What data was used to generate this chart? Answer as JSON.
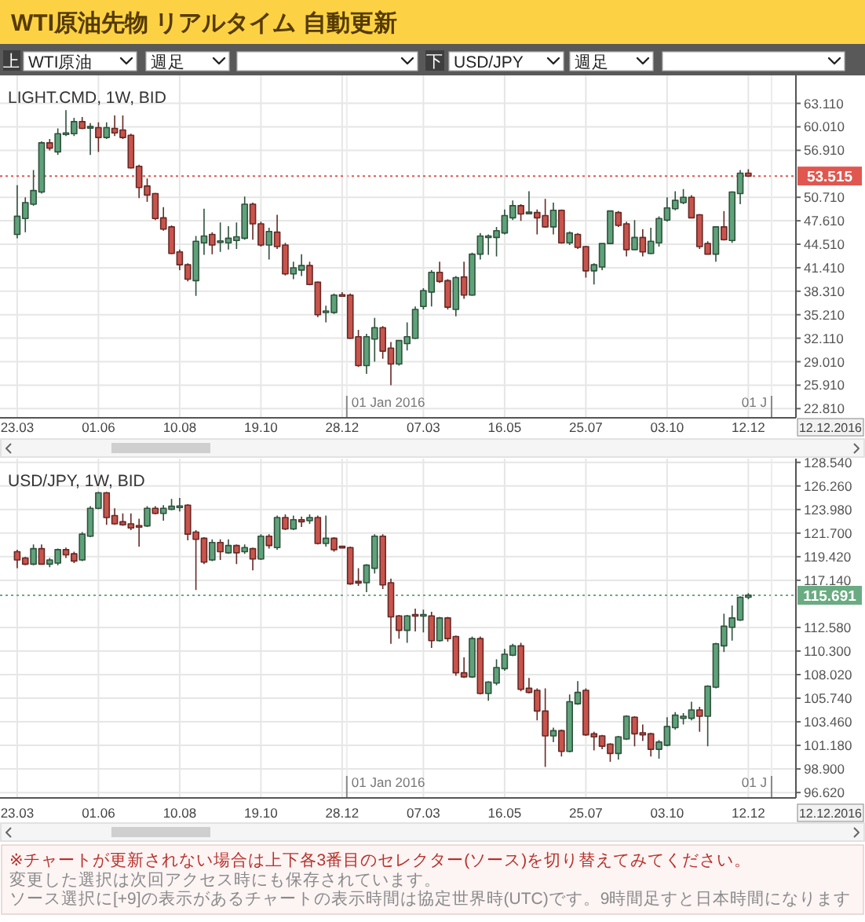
{
  "chart_data": [
    {
      "type": "other",
      "title": "WTI原油先物 リアルタイム 自動更新",
      "annotations": [
        "上",
        "WTI原油",
        "週足",
        "下",
        "USD/JPY",
        "週足"
      ]
    },
    {
      "type": "candlestick",
      "title": "LIGHT.CMD, 1W, BID",
      "x": [
        "2015-03-23",
        "2015-03-30",
        "2015-04-06",
        "2015-04-13",
        "2015-04-20",
        "2015-04-27",
        "2015-05-04",
        "2015-05-11",
        "2015-05-18",
        "2015-05-25",
        "2015-06-01",
        "2015-06-08",
        "2015-06-15",
        "2015-06-22",
        "2015-06-29",
        "2015-07-06",
        "2015-07-13",
        "2015-07-20",
        "2015-07-27",
        "2015-08-03",
        "2015-08-10",
        "2015-08-17",
        "2015-08-24",
        "2015-08-31",
        "2015-09-07",
        "2015-09-14",
        "2015-09-21",
        "2015-09-28",
        "2015-10-05",
        "2015-10-12",
        "2015-10-19",
        "2015-10-26",
        "2015-11-02",
        "2015-11-09",
        "2015-11-16",
        "2015-11-23",
        "2015-11-30",
        "2015-12-07",
        "2015-12-14",
        "2015-12-21",
        "2015-12-28",
        "2016-01-04",
        "2016-01-11",
        "2016-01-18",
        "2016-01-25",
        "2016-02-01",
        "2016-02-08",
        "2016-02-15",
        "2016-02-22",
        "2016-02-29",
        "2016-03-07",
        "2016-03-14",
        "2016-03-21",
        "2016-03-28",
        "2016-04-04",
        "2016-04-11",
        "2016-04-18",
        "2016-04-25",
        "2016-05-02",
        "2016-05-09",
        "2016-05-16",
        "2016-05-23",
        "2016-05-30",
        "2016-06-06",
        "2016-06-13",
        "2016-06-20",
        "2016-06-27",
        "2016-07-04",
        "2016-07-11",
        "2016-07-18",
        "2016-07-25",
        "2016-08-01",
        "2016-08-08",
        "2016-08-15",
        "2016-08-22",
        "2016-08-29",
        "2016-09-05",
        "2016-09-12",
        "2016-09-19",
        "2016-09-26",
        "2016-10-03",
        "2016-10-10",
        "2016-10-17",
        "2016-10-24",
        "2016-10-31",
        "2016-11-07",
        "2016-11-14",
        "2016-11-21",
        "2016-11-28",
        "2016-12-05",
        "2016-12-12"
      ],
      "ohlc": [
        [
          45.8,
          52.3,
          45.3,
          48.2
        ],
        [
          47.9,
          50.7,
          46.1,
          50.0
        ],
        [
          49.8,
          54.3,
          49.6,
          51.6
        ],
        [
          51.4,
          58.1,
          51.2,
          57.9
        ],
        [
          57.9,
          58.4,
          56.9,
          57.2
        ],
        [
          56.7,
          59.8,
          56.3,
          59.1
        ],
        [
          59.0,
          62.2,
          58.8,
          59.2
        ],
        [
          59.1,
          61.2,
          58.8,
          60.7
        ],
        [
          60.7,
          61.3,
          59.7,
          59.8
        ],
        [
          59.9,
          60.5,
          56.3,
          60.0
        ],
        [
          59.9,
          60.6,
          56.7,
          58.6
        ],
        [
          58.6,
          60.6,
          58.4,
          59.9
        ],
        [
          59.8,
          61.5,
          58.8,
          59.2
        ],
        [
          59.6,
          61.5,
          58.4,
          58.6
        ],
        [
          58.9,
          59.1,
          54.5,
          54.6
        ],
        [
          54.8,
          55.0,
          50.6,
          52.0
        ],
        [
          52.2,
          53.2,
          50.1,
          51.0
        ],
        [
          51.2,
          51.3,
          47.7,
          47.9
        ],
        [
          48.0,
          49.4,
          46.3,
          46.5
        ],
        [
          46.8,
          47.0,
          43.2,
          43.3
        ],
        [
          43.5,
          43.8,
          41.1,
          41.8
        ],
        [
          41.8,
          42.0,
          39.6,
          39.9
        ],
        [
          39.7,
          45.6,
          37.7,
          44.9
        ],
        [
          44.7,
          49.2,
          43.1,
          45.6
        ],
        [
          45.8,
          46.1,
          43.2,
          44.4
        ],
        [
          44.8,
          47.4,
          43.5,
          44.9
        ],
        [
          44.7,
          46.9,
          43.8,
          45.3
        ],
        [
          45.0,
          47.4,
          43.9,
          45.5
        ],
        [
          45.3,
          50.8,
          45.1,
          49.8
        ],
        [
          49.8,
          50.0,
          45.1,
          47.2
        ],
        [
          47.2,
          47.5,
          44.2,
          44.4
        ],
        [
          44.4,
          46.7,
          42.5,
          46.2
        ],
        [
          46.1,
          48.4,
          43.9,
          44.2
        ],
        [
          44.4,
          44.7,
          40.4,
          40.6
        ],
        [
          40.6,
          42.2,
          39.9,
          41.4
        ],
        [
          41.1,
          43.2,
          40.3,
          41.7
        ],
        [
          41.7,
          42.2,
          39.1,
          39.2
        ],
        [
          39.5,
          39.6,
          34.9,
          35.2
        ],
        [
          35.5,
          36.4,
          34.2,
          35.7
        ],
        [
          35.5,
          38.0,
          35.3,
          37.8
        ],
        [
          37.8,
          38.2,
          37.6,
          37.7
        ],
        [
          37.8,
          38.0,
          32.0,
          32.1
        ],
        [
          32.3,
          33.2,
          28.3,
          28.5
        ],
        [
          28.5,
          32.7,
          27.4,
          32.3
        ],
        [
          32.0,
          34.8,
          29.0,
          33.5
        ],
        [
          33.5,
          33.7,
          29.4,
          30.4
        ],
        [
          30.8,
          31.6,
          25.9,
          28.7
        ],
        [
          28.7,
          31.8,
          28.5,
          31.8
        ],
        [
          31.4,
          34.2,
          30.5,
          32.3
        ],
        [
          32.1,
          36.3,
          32.0,
          35.9
        ],
        [
          36.3,
          38.7,
          35.9,
          38.4
        ],
        [
          38.2,
          41.1,
          36.3,
          40.8
        ],
        [
          40.8,
          42.2,
          39.4,
          39.6
        ],
        [
          39.7,
          39.9,
          35.9,
          36.2
        ],
        [
          35.9,
          40.3,
          35.0,
          40.1
        ],
        [
          40.2,
          42.2,
          37.3,
          37.8
        ],
        [
          37.8,
          43.4,
          37.7,
          43.2
        ],
        [
          43.2,
          46.0,
          42.5,
          45.6
        ],
        [
          45.4,
          45.8,
          43.1,
          45.6
        ],
        [
          45.4,
          46.8,
          42.9,
          46.3
        ],
        [
          46.0,
          49.1,
          45.8,
          48.3
        ],
        [
          48.0,
          50.3,
          47.7,
          49.6
        ],
        [
          49.6,
          49.8,
          47.6,
          48.5
        ],
        [
          48.6,
          51.5,
          48.5,
          48.7
        ],
        [
          48.7,
          49.1,
          45.8,
          48.0
        ],
        [
          48.3,
          50.5,
          46.7,
          46.8
        ],
        [
          46.8,
          50.0,
          45.8,
          49.0
        ],
        [
          49.0,
          49.1,
          44.6,
          44.7
        ],
        [
          44.7,
          46.2,
          44.4,
          46.0
        ],
        [
          45.8,
          46.0,
          43.9,
          44.1
        ],
        [
          44.2,
          44.3,
          40.1,
          41.0
        ],
        [
          41.0,
          42.0,
          39.2,
          41.8
        ],
        [
          41.5,
          44.7,
          41.1,
          44.6
        ],
        [
          44.6,
          49.0,
          44.5,
          48.9
        ],
        [
          48.7,
          48.9,
          46.8,
          47.0
        ],
        [
          47.2,
          47.5,
          42.9,
          43.8
        ],
        [
          43.8,
          47.7,
          43.7,
          45.4
        ],
        [
          45.4,
          46.5,
          42.9,
          43.5
        ],
        [
          43.3,
          46.7,
          43.2,
          44.9
        ],
        [
          44.7,
          48.2,
          44.2,
          47.9
        ],
        [
          47.7,
          50.7,
          47.5,
          49.3
        ],
        [
          49.2,
          51.5,
          49.0,
          50.3
        ],
        [
          50.0,
          51.8,
          49.8,
          50.7
        ],
        [
          50.7,
          51.0,
          47.9,
          48.0
        ],
        [
          48.4,
          48.5,
          43.9,
          44.2
        ],
        [
          44.6,
          44.9,
          43.1,
          43.2
        ],
        [
          43.2,
          46.9,
          42.2,
          46.8
        ],
        [
          46.8,
          48.9,
          45.0,
          45.1
        ],
        [
          45.0,
          51.5,
          44.7,
          51.4
        ],
        [
          51.2,
          54.3,
          49.8,
          53.9
        ],
        [
          53.9,
          54.4,
          53.4,
          53.5
        ]
      ],
      "colors": [
        "#5fa27a",
        "#5fa27a",
        "#5fa27a",
        "#5fa27a",
        "#c9544c",
        "#5fa27a",
        "#5fa27a",
        "#5fa27a",
        "#c9544c",
        "#5fa27a",
        "#c9544c",
        "#5fa27a",
        "#c9544c",
        "#c9544c",
        "#c9544c",
        "#c9544c",
        "#c9544c",
        "#c9544c",
        "#c9544c",
        "#c9544c",
        "#c9544c",
        "#c9544c",
        "#5fa27a",
        "#5fa27a",
        "#c9544c",
        "#5fa27a",
        "#5fa27a",
        "#5fa27a",
        "#5fa27a",
        "#c9544c",
        "#c9544c",
        "#5fa27a",
        "#c9544c",
        "#c9544c",
        "#5fa27a",
        "#5fa27a",
        "#c9544c",
        "#c9544c",
        "#5fa27a",
        "#5fa27a",
        "#c9544c",
        "#c9544c",
        "#c9544c",
        "#5fa27a",
        "#5fa27a",
        "#c9544c",
        "#c9544c",
        "#5fa27a",
        "#5fa27a",
        "#5fa27a",
        "#5fa27a",
        "#5fa27a",
        "#c9544c",
        "#c9544c",
        "#5fa27a",
        "#c9544c",
        "#5fa27a",
        "#5fa27a",
        "#5fa27a",
        "#5fa27a",
        "#5fa27a",
        "#5fa27a",
        "#c9544c",
        "#5fa27a",
        "#c9544c",
        "#c9544c",
        "#5fa27a",
        "#c9544c",
        "#5fa27a",
        "#c9544c",
        "#c9544c",
        "#5fa27a",
        "#5fa27a",
        "#5fa27a",
        "#c9544c",
        "#c9544c",
        "#5fa27a",
        "#c9544c",
        "#5fa27a",
        "#5fa27a",
        "#5fa27a",
        "#5fa27a",
        "#5fa27a",
        "#c9544c",
        "#c9544c",
        "#c9544c",
        "#5fa27a",
        "#c9544c",
        "#5fa27a",
        "#5fa27a",
        "#c9544c"
      ],
      "xlim": [
        "2015-03-19",
        "2017-01-22"
      ],
      "ylim": [
        21.6,
        66.8
      ],
      "xticks": [
        {
          "value": "2015-03-23",
          "label": "23.03"
        },
        {
          "value": "2015-06-01",
          "label": "01.06"
        },
        {
          "value": "2015-08-10",
          "label": "10.08"
        },
        {
          "value": "2015-10-19",
          "label": "19.10"
        },
        {
          "value": "2015-12-28",
          "label": "28.12"
        },
        {
          "value": "2016-03-07",
          "label": "07.03"
        },
        {
          "value": "2016-05-16",
          "label": "16.05"
        },
        {
          "value": "2016-07-25",
          "label": "25.07"
        },
        {
          "value": "2016-10-03",
          "label": "03.10"
        },
        {
          "value": "2016-12-12",
          "label": "12.12"
        }
      ],
      "yticks": [
        {
          "value": 63.11,
          "label": "63.110"
        },
        {
          "value": 60.01,
          "label": "60.010"
        },
        {
          "value": 56.91,
          "label": "56.910"
        },
        {
          "value": 50.71,
          "label": "50.710"
        },
        {
          "value": 47.61,
          "label": "47.610"
        },
        {
          "value": 44.51,
          "label": "44.510"
        },
        {
          "value": 41.41,
          "label": "41.410"
        },
        {
          "value": 38.31,
          "label": "38.310"
        },
        {
          "value": 35.21,
          "label": "35.210"
        },
        {
          "value": 32.11,
          "label": "32.110"
        },
        {
          "value": 29.01,
          "label": "29.010"
        },
        {
          "value": 25.91,
          "label": "25.910"
        },
        {
          "value": 22.81,
          "label": "22.810"
        }
      ],
      "ref_lines": [
        {
          "axis": "y",
          "value": 53.515,
          "label": "53.515",
          "color": "#e0574f",
          "line_style": "dotted"
        },
        {
          "axis": "x",
          "value": "2016-01-01",
          "label": "01 Jan 2016"
        },
        {
          "axis": "x",
          "value": "2017-01-01",
          "label": "01 J"
        }
      ],
      "grid": true,
      "annotations": [
        "12.12.2016"
      ]
    },
    {
      "type": "candlestick",
      "title": "USD/JPY, 1W, BID",
      "x": [
        "2015-03-23",
        "2015-03-30",
        "2015-04-06",
        "2015-04-13",
        "2015-04-20",
        "2015-04-27",
        "2015-05-04",
        "2015-05-11",
        "2015-05-18",
        "2015-05-25",
        "2015-06-01",
        "2015-06-08",
        "2015-06-15",
        "2015-06-22",
        "2015-06-29",
        "2015-07-06",
        "2015-07-13",
        "2015-07-20",
        "2015-07-27",
        "2015-08-03",
        "2015-08-10",
        "2015-08-17",
        "2015-08-24",
        "2015-08-31",
        "2015-09-07",
        "2015-09-14",
        "2015-09-21",
        "2015-09-28",
        "2015-10-05",
        "2015-10-12",
        "2015-10-19",
        "2015-10-26",
        "2015-11-02",
        "2015-11-09",
        "2015-11-16",
        "2015-11-23",
        "2015-11-30",
        "2015-12-07",
        "2015-12-14",
        "2015-12-21",
        "2015-12-28",
        "2016-01-04",
        "2016-01-11",
        "2016-01-18",
        "2016-01-25",
        "2016-02-01",
        "2016-02-08",
        "2016-02-15",
        "2016-02-22",
        "2016-02-29",
        "2016-03-07",
        "2016-03-14",
        "2016-03-21",
        "2016-03-28",
        "2016-04-04",
        "2016-04-11",
        "2016-04-18",
        "2016-04-25",
        "2016-05-02",
        "2016-05-09",
        "2016-05-16",
        "2016-05-23",
        "2016-05-30",
        "2016-06-06",
        "2016-06-13",
        "2016-06-20",
        "2016-06-27",
        "2016-07-04",
        "2016-07-11",
        "2016-07-18",
        "2016-07-25",
        "2016-08-01",
        "2016-08-08",
        "2016-08-15",
        "2016-08-22",
        "2016-08-29",
        "2016-09-05",
        "2016-09-12",
        "2016-09-19",
        "2016-09-26",
        "2016-10-03",
        "2016-10-10",
        "2016-10-17",
        "2016-10-24",
        "2016-10-31",
        "2016-11-07",
        "2016-11-14",
        "2016-11-21",
        "2016-11-28",
        "2016-12-05",
        "2016-12-12"
      ],
      "ohlc": [
        [
          119.9,
          120.1,
          118.3,
          119.1
        ],
        [
          119.3,
          119.4,
          118.6,
          118.7
        ],
        [
          118.7,
          120.6,
          118.6,
          120.2
        ],
        [
          120.2,
          120.6,
          118.7,
          118.7
        ],
        [
          118.7,
          119.3,
          118.4,
          119.1
        ],
        [
          118.8,
          120.2,
          118.6,
          120.1
        ],
        [
          120.1,
          120.3,
          119.3,
          119.6
        ],
        [
          119.7,
          119.9,
          118.8,
          119.0
        ],
        [
          119.1,
          121.8,
          119.0,
          121.6
        ],
        [
          121.4,
          124.3,
          121.3,
          124.1
        ],
        [
          124.1,
          125.7,
          124.0,
          125.6
        ],
        [
          125.6,
          125.7,
          122.5,
          123.2
        ],
        [
          123.4,
          124.1,
          122.5,
          122.6
        ],
        [
          122.8,
          123.6,
          122.4,
          122.5
        ],
        [
          122.6,
          123.6,
          122.0,
          122.2
        ],
        [
          122.4,
          123.1,
          120.4,
          122.3
        ],
        [
          122.4,
          124.3,
          122.3,
          124.1
        ],
        [
          124.1,
          124.3,
          123.5,
          123.6
        ],
        [
          123.6,
          124.4,
          122.9,
          124.1
        ],
        [
          124.0,
          125.0,
          123.9,
          124.3
        ],
        [
          124.2,
          125.1,
          123.8,
          124.3
        ],
        [
          124.4,
          124.5,
          121.0,
          121.6
        ],
        [
          121.8,
          122.0,
          116.2,
          121.1
        ],
        [
          121.2,
          121.3,
          118.7,
          118.9
        ],
        [
          119.1,
          121.1,
          119.0,
          120.8
        ],
        [
          120.8,
          121.1,
          119.1,
          119.9
        ],
        [
          119.8,
          121.1,
          119.7,
          120.5
        ],
        [
          120.5,
          120.6,
          118.7,
          119.8
        ],
        [
          119.9,
          120.6,
          119.7,
          120.3
        ],
        [
          120.2,
          120.3,
          118.1,
          119.2
        ],
        [
          119.2,
          121.6,
          119.1,
          121.4
        ],
        [
          121.4,
          121.6,
          120.2,
          120.5
        ],
        [
          120.3,
          123.4,
          120.1,
          123.2
        ],
        [
          123.2,
          123.5,
          122.0,
          122.1
        ],
        [
          122.1,
          123.4,
          122.0,
          123.0
        ],
        [
          123.0,
          123.3,
          122.3,
          122.8
        ],
        [
          122.9,
          123.5,
          122.6,
          123.2
        ],
        [
          123.2,
          123.4,
          120.6,
          120.7
        ],
        [
          120.7,
          123.4,
          120.4,
          121.2
        ],
        [
          121.2,
          121.3,
          119.9,
          120.1
        ],
        [
          120.4,
          120.5,
          120.2,
          120.3
        ],
        [
          120.3,
          120.4,
          116.7,
          116.8
        ],
        [
          117.0,
          118.3,
          116.6,
          116.9
        ],
        [
          116.9,
          118.7,
          116.0,
          118.6
        ],
        [
          118.3,
          121.6,
          117.8,
          121.4
        ],
        [
          121.4,
          121.6,
          116.3,
          116.7
        ],
        [
          116.9,
          117.3,
          111.0,
          113.6
        ],
        [
          113.7,
          113.8,
          111.5,
          112.3
        ],
        [
          112.3,
          113.8,
          111.1,
          113.7
        ],
        [
          113.8,
          114.4,
          112.2,
          113.7
        ],
        [
          113.7,
          114.3,
          112.1,
          113.8
        ],
        [
          113.7,
          114.1,
          110.6,
          111.3
        ],
        [
          111.3,
          113.6,
          111.2,
          113.5
        ],
        [
          113.5,
          113.6,
          111.2,
          111.5
        ],
        [
          111.7,
          111.8,
          107.9,
          108.2
        ],
        [
          108.2,
          109.7,
          107.7,
          107.8
        ],
        [
          107.8,
          111.7,
          107.7,
          111.5
        ],
        [
          111.5,
          111.7,
          106.1,
          106.2
        ],
        [
          106.2,
          107.4,
          105.5,
          107.3
        ],
        [
          107.2,
          109.5,
          107.0,
          108.7
        ],
        [
          108.6,
          110.5,
          108.4,
          110.0
        ],
        [
          109.9,
          111.0,
          109.8,
          110.8
        ],
        [
          110.8,
          111.1,
          106.4,
          106.6
        ],
        [
          106.7,
          107.7,
          106.2,
          106.3
        ],
        [
          106.5,
          106.7,
          103.6,
          104.5
        ],
        [
          104.5,
          106.7,
          99.1,
          102.1
        ],
        [
          102.1,
          102.9,
          101.5,
          102.6
        ],
        [
          102.6,
          102.7,
          100.1,
          100.6
        ],
        [
          100.6,
          106.1,
          100.5,
          105.4
        ],
        [
          105.2,
          107.4,
          105.1,
          106.3
        ],
        [
          106.5,
          106.7,
          102.1,
          102.2
        ],
        [
          102.3,
          102.5,
          100.7,
          102.0
        ],
        [
          102.1,
          102.2,
          100.8,
          101.1
        ],
        [
          101.3,
          101.4,
          99.6,
          100.4
        ],
        [
          100.4,
          102.1,
          99.8,
          102.0
        ],
        [
          101.8,
          104.1,
          101.7,
          104.0
        ],
        [
          103.9,
          104.0,
          101.1,
          102.3
        ],
        [
          102.4,
          103.2,
          101.6,
          102.2
        ],
        [
          102.3,
          102.4,
          100.1,
          100.8
        ],
        [
          100.8,
          101.7,
          99.9,
          101.5
        ],
        [
          101.2,
          103.9,
          101.1,
          103.0
        ],
        [
          102.9,
          104.4,
          102.7,
          104.1
        ],
        [
          103.8,
          104.3,
          103.2,
          104.0
        ],
        [
          103.8,
          105.4,
          103.6,
          104.6
        ],
        [
          104.6,
          104.9,
          102.5,
          104.0
        ],
        [
          104.0,
          107.0,
          101.1,
          106.9
        ],
        [
          106.8,
          111.1,
          106.7,
          111.0
        ],
        [
          110.8,
          113.9,
          110.2,
          112.7
        ],
        [
          112.6,
          114.7,
          111.3,
          113.5
        ],
        [
          113.3,
          115.6,
          113.2,
          115.5
        ],
        [
          115.5,
          115.9,
          115.3,
          115.7
        ]
      ],
      "colors": [
        "#c9544c",
        "#c9544c",
        "#5fa27a",
        "#c9544c",
        "#5fa27a",
        "#5fa27a",
        "#c9544c",
        "#c9544c",
        "#5fa27a",
        "#5fa27a",
        "#5fa27a",
        "#c9544c",
        "#c9544c",
        "#c9544c",
        "#c9544c",
        "#c9544c",
        "#5fa27a",
        "#c9544c",
        "#5fa27a",
        "#5fa27a",
        "#5fa27a",
        "#c9544c",
        "#c9544c",
        "#c9544c",
        "#5fa27a",
        "#c9544c",
        "#5fa27a",
        "#c9544c",
        "#5fa27a",
        "#c9544c",
        "#5fa27a",
        "#c9544c",
        "#5fa27a",
        "#c9544c",
        "#5fa27a",
        "#c9544c",
        "#5fa27a",
        "#c9544c",
        "#5fa27a",
        "#c9544c",
        "#c9544c",
        "#c9544c",
        "#c9544c",
        "#5fa27a",
        "#5fa27a",
        "#c9544c",
        "#c9544c",
        "#c9544c",
        "#5fa27a",
        "#c9544c",
        "#5fa27a",
        "#c9544c",
        "#5fa27a",
        "#c9544c",
        "#c9544c",
        "#c9544c",
        "#5fa27a",
        "#c9544c",
        "#5fa27a",
        "#5fa27a",
        "#5fa27a",
        "#5fa27a",
        "#c9544c",
        "#c9544c",
        "#c9544c",
        "#c9544c",
        "#5fa27a",
        "#c9544c",
        "#5fa27a",
        "#5fa27a",
        "#c9544c",
        "#c9544c",
        "#c9544c",
        "#c9544c",
        "#5fa27a",
        "#5fa27a",
        "#c9544c",
        "#c9544c",
        "#c9544c",
        "#5fa27a",
        "#5fa27a",
        "#5fa27a",
        "#5fa27a",
        "#5fa27a",
        "#c9544c",
        "#5fa27a",
        "#5fa27a",
        "#5fa27a",
        "#5fa27a",
        "#5fa27a",
        "#5fa27a"
      ],
      "xlim": [
        "2015-03-19",
        "2017-01-22"
      ],
      "ylim": [
        96.1,
        128.9
      ],
      "xticks": [
        {
          "value": "2015-03-23",
          "label": "23.03"
        },
        {
          "value": "2015-06-01",
          "label": "01.06"
        },
        {
          "value": "2015-08-10",
          "label": "10.08"
        },
        {
          "value": "2015-10-19",
          "label": "19.10"
        },
        {
          "value": "2015-12-28",
          "label": "28.12"
        },
        {
          "value": "2016-03-07",
          "label": "07.03"
        },
        {
          "value": "2016-05-16",
          "label": "16.05"
        },
        {
          "value": "2016-07-25",
          "label": "25.07"
        },
        {
          "value": "2016-10-03",
          "label": "03.10"
        },
        {
          "value": "2016-12-12",
          "label": "12.12"
        }
      ],
      "yticks": [
        {
          "value": 128.54,
          "label": "128.540"
        },
        {
          "value": 126.26,
          "label": "126.260"
        },
        {
          "value": 123.98,
          "label": "123.980"
        },
        {
          "value": 121.7,
          "label": "121.700"
        },
        {
          "value": 119.42,
          "label": "119.420"
        },
        {
          "value": 117.14,
          "label": "117.140"
        },
        {
          "value": 112.58,
          "label": "112.580"
        },
        {
          "value": 110.3,
          "label": "110.300"
        },
        {
          "value": 108.02,
          "label": "108.020"
        },
        {
          "value": 105.74,
          "label": "105.740"
        },
        {
          "value": 103.46,
          "label": "103.460"
        },
        {
          "value": 101.18,
          "label": "101.180"
        },
        {
          "value": 98.9,
          "label": "98.900"
        },
        {
          "value": 96.62,
          "label": "96.620"
        }
      ],
      "ref_lines": [
        {
          "axis": "y",
          "value": 115.691,
          "label": "115.691",
          "color": "#6aab82",
          "line_style": "dotted"
        },
        {
          "axis": "x",
          "value": "2016-01-01",
          "label": "01 Jan 2016"
        },
        {
          "axis": "x",
          "value": "2017-01-01",
          "label": "01 J"
        }
      ],
      "grid": true,
      "annotations": [
        "12.12.2016",
        "※チャートが更新されない場合は上下各3番目のセレクター(ソース)を切り替えてみてください。",
        "変更した選択は次回アクセス時にも保存されています。",
        "ソース選択に[+9]の表示があるチャートの表示時間は協定世界時(UTC)です。9時間足すと日本時間になります"
      ]
    }
  ]
}
